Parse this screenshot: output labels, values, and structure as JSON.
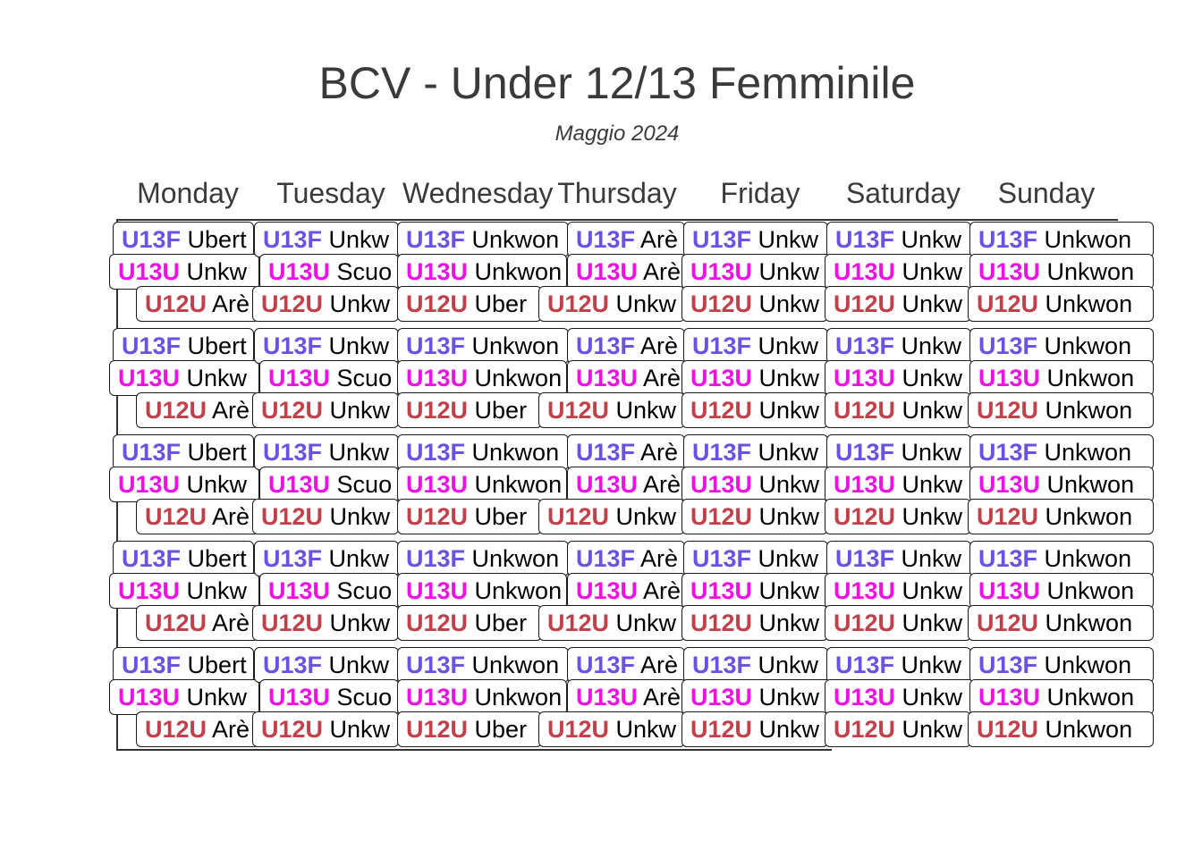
{
  "title": "BCV - Under 12/13 Femminile",
  "subtitle": "Maggio 2024",
  "days": [
    "Monday",
    "Tuesday",
    "Wednesday",
    "Thursday",
    "Friday",
    "Saturday",
    "Sunday"
  ],
  "team_colors": {
    "U13F": "#6a52e6",
    "U13U": "#ee11e3",
    "U12U": "#c2404a"
  },
  "weeks": [
    [
      [
        {
          "code": "U13F",
          "text": "Ubert"
        },
        {
          "code": "U13U",
          "text": "Unkw"
        },
        {
          "code": "U12U",
          "text": "Arè"
        }
      ],
      [
        {
          "code": "U13F",
          "text": "Unkw"
        },
        {
          "code": "U13U",
          "text": "Scuo"
        },
        {
          "code": "U12U",
          "text": "Unkw"
        }
      ],
      [
        {
          "code": "U13F",
          "text": "Unkwon"
        },
        {
          "code": "U13U",
          "text": "Unkwon"
        },
        {
          "code": "U12U",
          "text": "Uber"
        }
      ],
      [
        {
          "code": "U13F",
          "text": "Arè"
        },
        {
          "code": "U13U",
          "text": "Arè"
        },
        {
          "code": "U12U",
          "text": "Unkw"
        }
      ],
      [
        {
          "code": "U13F",
          "text": "Unkw"
        },
        {
          "code": "U13U",
          "text": "Unkw"
        },
        {
          "code": "U12U",
          "text": "Unkw"
        }
      ],
      [
        {
          "code": "U13F",
          "text": "Unkw"
        },
        {
          "code": "U13U",
          "text": "Unkw"
        },
        {
          "code": "U12U",
          "text": "Unkw"
        }
      ],
      [
        {
          "code": "U13F",
          "text": "Unkwon"
        },
        {
          "code": "U13U",
          "text": "Unkwon"
        },
        {
          "code": "U12U",
          "text": "Unkwon"
        }
      ]
    ],
    [
      [
        {
          "code": "U13F",
          "text": "Ubert"
        },
        {
          "code": "U13U",
          "text": "Unkw"
        },
        {
          "code": "U12U",
          "text": "Arè"
        }
      ],
      [
        {
          "code": "U13F",
          "text": "Unkw"
        },
        {
          "code": "U13U",
          "text": "Scuo"
        },
        {
          "code": "U12U",
          "text": "Unkw"
        }
      ],
      [
        {
          "code": "U13F",
          "text": "Unkwon"
        },
        {
          "code": "U13U",
          "text": "Unkwon"
        },
        {
          "code": "U12U",
          "text": "Uber"
        }
      ],
      [
        {
          "code": "U13F",
          "text": "Arè"
        },
        {
          "code": "U13U",
          "text": "Arè"
        },
        {
          "code": "U12U",
          "text": "Unkw"
        }
      ],
      [
        {
          "code": "U13F",
          "text": "Unkw"
        },
        {
          "code": "U13U",
          "text": "Unkw"
        },
        {
          "code": "U12U",
          "text": "Unkw"
        }
      ],
      [
        {
          "code": "U13F",
          "text": "Unkw"
        },
        {
          "code": "U13U",
          "text": "Unkw"
        },
        {
          "code": "U12U",
          "text": "Unkw"
        }
      ],
      [
        {
          "code": "U13F",
          "text": "Unkwon"
        },
        {
          "code": "U13U",
          "text": "Unkwon"
        },
        {
          "code": "U12U",
          "text": "Unkwon"
        }
      ]
    ],
    [
      [
        {
          "code": "U13F",
          "text": "Ubert"
        },
        {
          "code": "U13U",
          "text": "Unkw"
        },
        {
          "code": "U12U",
          "text": "Arè"
        }
      ],
      [
        {
          "code": "U13F",
          "text": "Unkw"
        },
        {
          "code": "U13U",
          "text": "Scuo"
        },
        {
          "code": "U12U",
          "text": "Unkw"
        }
      ],
      [
        {
          "code": "U13F",
          "text": "Unkwon"
        },
        {
          "code": "U13U",
          "text": "Unkwon"
        },
        {
          "code": "U12U",
          "text": "Uber"
        }
      ],
      [
        {
          "code": "U13F",
          "text": "Arè"
        },
        {
          "code": "U13U",
          "text": "Arè"
        },
        {
          "code": "U12U",
          "text": "Unkw"
        }
      ],
      [
        {
          "code": "U13F",
          "text": "Unkw"
        },
        {
          "code": "U13U",
          "text": "Unkw"
        },
        {
          "code": "U12U",
          "text": "Unkw"
        }
      ],
      [
        {
          "code": "U13F",
          "text": "Unkw"
        },
        {
          "code": "U13U",
          "text": "Unkw"
        },
        {
          "code": "U12U",
          "text": "Unkw"
        }
      ],
      [
        {
          "code": "U13F",
          "text": "Unkwon"
        },
        {
          "code": "U13U",
          "text": "Unkwon"
        },
        {
          "code": "U12U",
          "text": "Unkwon"
        }
      ]
    ],
    [
      [
        {
          "code": "U13F",
          "text": "Ubert"
        },
        {
          "code": "U13U",
          "text": "Unkw"
        },
        {
          "code": "U12U",
          "text": "Arè"
        }
      ],
      [
        {
          "code": "U13F",
          "text": "Unkw"
        },
        {
          "code": "U13U",
          "text": "Scuo"
        },
        {
          "code": "U12U",
          "text": "Unkw"
        }
      ],
      [
        {
          "code": "U13F",
          "text": "Unkwon"
        },
        {
          "code": "U13U",
          "text": "Unkwon"
        },
        {
          "code": "U12U",
          "text": "Uber"
        }
      ],
      [
        {
          "code": "U13F",
          "text": "Arè"
        },
        {
          "code": "U13U",
          "text": "Arè"
        },
        {
          "code": "U12U",
          "text": "Unkw"
        }
      ],
      [
        {
          "code": "U13F",
          "text": "Unkw"
        },
        {
          "code": "U13U",
          "text": "Unkw"
        },
        {
          "code": "U12U",
          "text": "Unkw"
        }
      ],
      [
        {
          "code": "U13F",
          "text": "Unkw"
        },
        {
          "code": "U13U",
          "text": "Unkw"
        },
        {
          "code": "U12U",
          "text": "Unkw"
        }
      ],
      [
        {
          "code": "U13F",
          "text": "Unkwon"
        },
        {
          "code": "U13U",
          "text": "Unkwon"
        },
        {
          "code": "U12U",
          "text": "Unkwon"
        }
      ]
    ],
    [
      [
        {
          "code": "U13F",
          "text": "Ubert"
        },
        {
          "code": "U13U",
          "text": "Unkw"
        },
        {
          "code": "U12U",
          "text": "Arè"
        }
      ],
      [
        {
          "code": "U13F",
          "text": "Unkw"
        },
        {
          "code": "U13U",
          "text": "Scuo"
        },
        {
          "code": "U12U",
          "text": "Unkw"
        }
      ],
      [
        {
          "code": "U13F",
          "text": "Unkwon"
        },
        {
          "code": "U13U",
          "text": "Unkwon"
        },
        {
          "code": "U12U",
          "text": "Uber"
        }
      ],
      [
        {
          "code": "U13F",
          "text": "Arè"
        },
        {
          "code": "U13U",
          "text": "Arè"
        },
        {
          "code": "U12U",
          "text": "Unkw"
        }
      ],
      [
        {
          "code": "U13F",
          "text": "Unkw"
        },
        {
          "code": "U13U",
          "text": "Unkw"
        },
        {
          "code": "U12U",
          "text": "Unkw"
        }
      ],
      [
        {
          "code": "U13F",
          "text": "Unkw"
        },
        {
          "code": "U13U",
          "text": "Unkw"
        },
        {
          "code": "U12U",
          "text": "Unkw"
        }
      ],
      [
        {
          "code": "U13F",
          "text": "Unkwon"
        },
        {
          "code": "U13U",
          "text": "Unkwon"
        },
        {
          "code": "U12U",
          "text": "Unkwon"
        }
      ]
    ]
  ]
}
